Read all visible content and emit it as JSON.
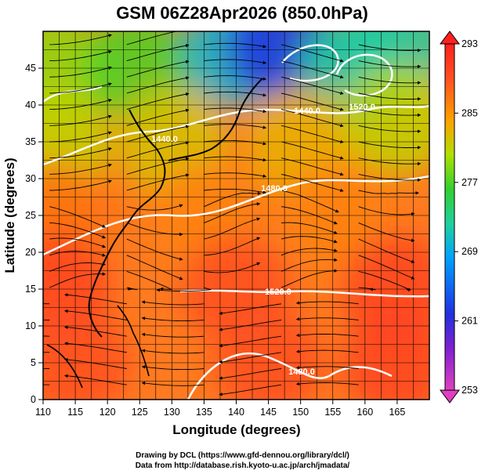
{
  "chart_data": {
    "type": "heatmap",
    "title": "GSM 06Z28Apr2026 (850.0hPa)",
    "xlabel": "Longitude (degrees)",
    "ylabel": "Latitude  (degrees)",
    "xlim": [
      110,
      170
    ],
    "ylim": [
      0,
      50
    ],
    "xticks": [
      110,
      115,
      120,
      125,
      130,
      135,
      140,
      145,
      150,
      155,
      160,
      165
    ],
    "yticks": [
      0,
      5,
      10,
      15,
      20,
      25,
      30,
      35,
      40,
      45
    ],
    "grid": true,
    "colorbar": {
      "min": 253,
      "max": 293,
      "ticks": [
        293,
        285,
        277,
        269,
        261,
        253
      ],
      "colors": [
        "#e040c0",
        "#2020d0",
        "#00a0ff",
        "#20d060",
        "#a0e000",
        "#ffa000",
        "#ff2020"
      ]
    },
    "contours": {
      "color": "#ffffff",
      "labels": [
        "1440.0",
        "1440.0",
        "1480.0",
        "1520.0",
        "1480.0",
        "1520.0"
      ]
    },
    "field_samples": [
      {
        "lon": 112,
        "lat": 45,
        "value": 279
      },
      {
        "lon": 125,
        "lat": 45,
        "value": 277
      },
      {
        "lon": 140,
        "lat": 47,
        "value": 270
      },
      {
        "lon": 147,
        "lat": 48,
        "value": 262
      },
      {
        "lon": 158,
        "lat": 45,
        "value": 272
      },
      {
        "lon": 165,
        "lat": 48,
        "value": 272
      },
      {
        "lon": 112,
        "lat": 35,
        "value": 281
      },
      {
        "lon": 130,
        "lat": 35,
        "value": 282
      },
      {
        "lon": 150,
        "lat": 35,
        "value": 283
      },
      {
        "lon": 165,
        "lat": 38,
        "value": 281
      },
      {
        "lon": 112,
        "lat": 25,
        "value": 287
      },
      {
        "lon": 135,
        "lat": 25,
        "value": 286
      },
      {
        "lon": 155,
        "lat": 25,
        "value": 286
      },
      {
        "lon": 112,
        "lat": 15,
        "value": 290
      },
      {
        "lon": 140,
        "lat": 15,
        "value": 289
      },
      {
        "lon": 165,
        "lat": 15,
        "value": 290
      },
      {
        "lon": 115,
        "lat": 5,
        "value": 289
      },
      {
        "lon": 145,
        "lat": 5,
        "value": 289
      },
      {
        "lon": 165,
        "lat": 5,
        "value": 290
      }
    ]
  },
  "credits": {
    "line1": "Drawing by DCL (https://www.gfd-dennou.org/library/dcl/)",
    "line2": "Data from http://database.rish.kyoto-u.ac.jp/arch/jmadata/"
  }
}
